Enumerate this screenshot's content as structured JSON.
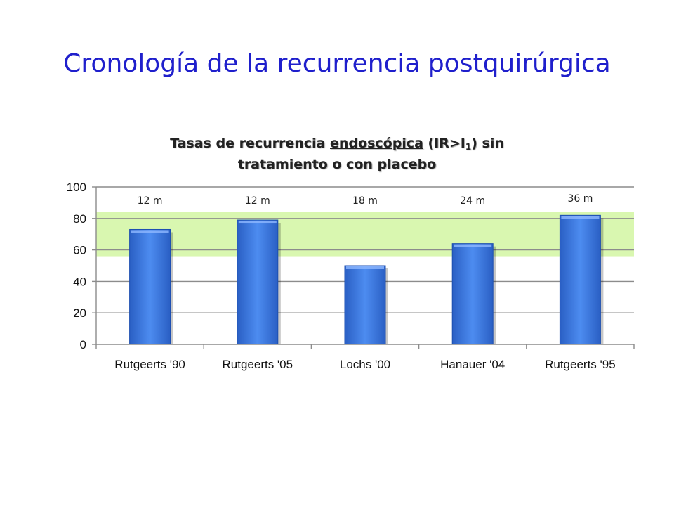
{
  "slide": {
    "title": "Cronología de la recurrencia postquirúrgica"
  },
  "chart_title": {
    "prefix": "Tasas de recurrencia ",
    "underlined": "endoscópica",
    "paren_open": " (IR>I",
    "subscript": "1",
    "paren_close": ") sin",
    "line2": "tratamiento o con placebo"
  },
  "chart_data": {
    "type": "bar",
    "title": "Tasas de recurrencia endoscópica (IR>I1) sin tratamiento o con placebo",
    "categories": [
      "Rutgeerts '90",
      "Rutgeerts '05",
      "Lochs '00",
      "Hanauer '04",
      "Rutgeerts '95"
    ],
    "values": [
      73,
      79,
      50,
      64,
      82
    ],
    "bar_labels": [
      "12 m",
      "12 m",
      "18 m",
      "24 m",
      "36 m"
    ],
    "ylim": [
      0,
      100
    ],
    "yticks": [
      "0",
      "20",
      "40",
      "60",
      "80",
      "100"
    ],
    "highlight_band": {
      "from": 56,
      "to": 84,
      "color": "#d9f7b0"
    },
    "bar_color": "#3d7be0",
    "grid": true
  }
}
